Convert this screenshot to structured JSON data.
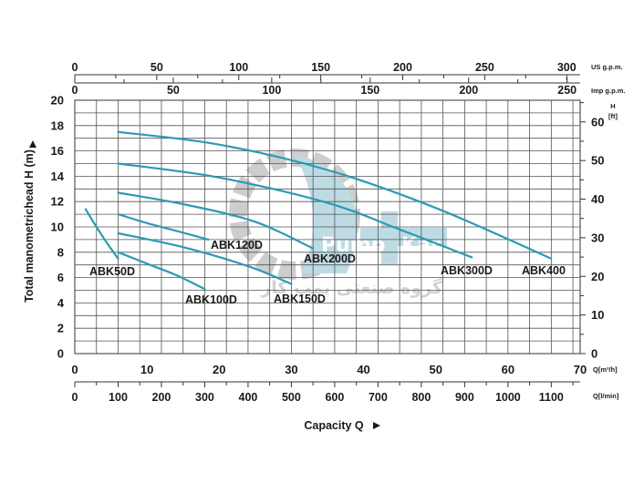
{
  "chart_data": {
    "type": "line",
    "title": "",
    "xlabel": "Capacity Q",
    "ylabel": "Total manometrichead H (m)",
    "xlim": [
      0,
      70
    ],
    "ylim": [
      0,
      20
    ],
    "grid": true,
    "axes": {
      "x_m3h": {
        "unit": "Q[m³/h]",
        "ticks": [
          0,
          10,
          20,
          30,
          40,
          50,
          60,
          70
        ]
      },
      "x_lmin": {
        "unit": "Q[l/min]",
        "ticks": [
          0,
          100,
          200,
          300,
          400,
          500,
          600,
          700,
          800,
          900,
          1000,
          1100
        ]
      },
      "x_usgpm": {
        "unit": "US g.p.m.",
        "ticks": [
          0,
          50,
          100,
          150,
          200,
          250,
          300
        ]
      },
      "x_impgpm": {
        "unit": "Imp g.p.m.",
        "ticks": [
          0,
          50,
          100,
          150,
          200,
          250
        ]
      },
      "y_m": {
        "ticks": [
          0,
          2,
          4,
          6,
          8,
          10,
          12,
          14,
          16,
          18,
          20
        ]
      },
      "y_ft": {
        "unit_line1": "H",
        "unit_line2": "[ft]",
        "ticks": [
          0,
          10,
          20,
          30,
          40,
          50,
          60
        ]
      }
    },
    "series": [
      {
        "name": "ABK50D",
        "x": [
          1.5,
          3,
          4.5,
          6
        ],
        "y": [
          11.4,
          10,
          8.7,
          7.5
        ]
      },
      {
        "name": "ABK100D",
        "x": [
          6,
          10,
          14,
          18
        ],
        "y": [
          8.0,
          7.1,
          6.2,
          5.1
        ]
      },
      {
        "name": "ABK120D",
        "x": [
          6,
          10,
          14,
          18.5
        ],
        "y": [
          11.0,
          10.3,
          9.7,
          9.0
        ]
      },
      {
        "name": "ABK150D",
        "x": [
          6,
          15,
          24,
          30
        ],
        "y": [
          9.5,
          8.4,
          6.9,
          5.5
        ]
      },
      {
        "name": "ABK200D",
        "x": [
          6,
          15,
          25,
          33
        ],
        "y": [
          12.7,
          11.8,
          10.4,
          8.3
        ]
      },
      {
        "name": "ABK300D",
        "x": [
          6,
          20,
          35,
          45,
          55
        ],
        "y": [
          15.0,
          13.9,
          11.9,
          9.8,
          7.6
        ]
      },
      {
        "name": "ABK400",
        "x": [
          6,
          20,
          35,
          50,
          66
        ],
        "y": [
          17.5,
          16.5,
          14.5,
          11.5,
          7.5
        ]
      }
    ]
  },
  "watermark": {
    "word1": "Pump",
    "word2": "Kar",
    "subtitle": "گروه صنعتی پمپ کار"
  }
}
